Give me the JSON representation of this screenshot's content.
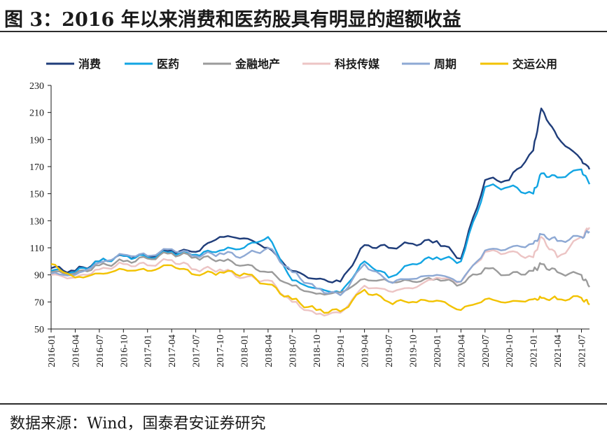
{
  "figure": {
    "title": "图 3：2016 年以来消费和医药股具有明显的超额收益",
    "source": "数据来源：Wind，国泰君安证券研究"
  },
  "chart_data": {
    "type": "line",
    "title": "",
    "xlabel": "",
    "ylabel": "",
    "ylim": [
      50,
      230
    ],
    "yticks": [
      50,
      70,
      90,
      110,
      130,
      150,
      170,
      190,
      210,
      230
    ],
    "xlim": [
      "2016-01",
      "2021-08"
    ],
    "xticks": [
      "2016-01",
      "2016-04",
      "2016-07",
      "2016-10",
      "2017-01",
      "2017-04",
      "2017-07",
      "2017-10",
      "2018-01",
      "2018-04",
      "2018-07",
      "2018-10",
      "2019-01",
      "2019-04",
      "2019-07",
      "2019-10",
      "2020-01",
      "2020-04",
      "2020-07",
      "2020-10",
      "2021-01",
      "2021-04",
      "2021-07"
    ],
    "legend_position": "top",
    "grid": false,
    "x": [
      "2016-01",
      "2016-04",
      "2016-07",
      "2016-10",
      "2017-01",
      "2017-04",
      "2017-07",
      "2017-10",
      "2018-01",
      "2018-04",
      "2018-07",
      "2018-10",
      "2019-01",
      "2019-04",
      "2019-07",
      "2019-10",
      "2020-01",
      "2020-04",
      "2020-07",
      "2020-10",
      "2021-01",
      "2021-02",
      "2021-04",
      "2021-07",
      "2021-08"
    ],
    "series": [
      {
        "name": "消费",
        "color": "#1f3d7a",
        "values": [
          95,
          93,
          100,
          104,
          104,
          108,
          107,
          118,
          117,
          110,
          93,
          87,
          85,
          112,
          110,
          113,
          115,
          102,
          160,
          160,
          182,
          213,
          192,
          175,
          168
        ]
      },
      {
        "name": "医药",
        "color": "#12a5e3",
        "values": [
          93,
          92,
          100,
          104,
          103,
          107,
          105,
          108,
          110,
          118,
          86,
          80,
          77,
          100,
          88,
          98,
          103,
          100,
          155,
          155,
          150,
          165,
          162,
          168,
          157
        ]
      },
      {
        "name": "金融地产",
        "color": "#9b9b9b",
        "values": [
          92,
          91,
          97,
          100,
          102,
          106,
          103,
          101,
          97,
          92,
          82,
          76,
          77,
          87,
          85,
          85,
          87,
          83,
          95,
          90,
          93,
          98,
          92,
          90,
          81
        ]
      },
      {
        "name": "科技传媒",
        "color": "#ecc4c4",
        "values": [
          90,
          88,
          94,
          98,
          97,
          101,
          94,
          94,
          88,
          86,
          70,
          61,
          62,
          82,
          78,
          80,
          88,
          85,
          107,
          107,
          103,
          118,
          103,
          118,
          125
        ]
      },
      {
        "name": "周期",
        "color": "#8ea9d4",
        "values": [
          91,
          90,
          99,
          105,
          104,
          109,
          104,
          106,
          104,
          110,
          92,
          80,
          75,
          98,
          85,
          87,
          90,
          85,
          108,
          110,
          113,
          120,
          115,
          118,
          122
        ]
      },
      {
        "name": "交运公用",
        "color": "#f2c200",
        "values": [
          98,
          88,
          91,
          94,
          93,
          97,
          90,
          92,
          91,
          83,
          72,
          64,
          63,
          79,
          70,
          70,
          71,
          64,
          72,
          70,
          72,
          73,
          72,
          73,
          68
        ]
      }
    ]
  }
}
